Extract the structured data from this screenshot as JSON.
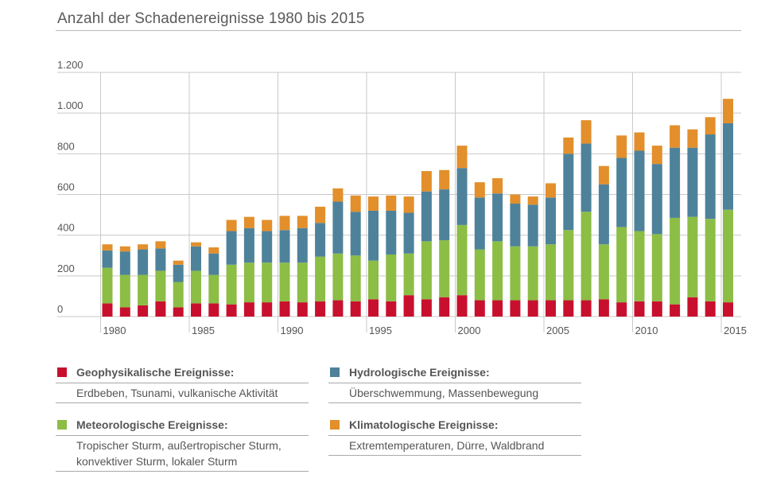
{
  "title": "Anzahl der Schadenereignisse 1980 bis 2015",
  "colors": {
    "geophysical": "#c8102e",
    "meteorological": "#8cbd45",
    "hydrological": "#4e829b",
    "climatological": "#e28f2c",
    "grid": "#c9c9c9",
    "axis_text": "#555555"
  },
  "legend": [
    {
      "key": "geophysical",
      "label": "Geophysikalische Ereignisse:",
      "desc": "Erdbeben, Tsunami, vulkanische Aktivität"
    },
    {
      "key": "hydrological",
      "label": "Hydrologische Ereignisse:",
      "desc": "Überschwemmung, Massenbewegung"
    },
    {
      "key": "meteorological",
      "label": "Meteorologische Ereignisse:",
      "desc": "Tropischer Sturm, außertropischer Sturm, konvektiver Sturm, lokaler Sturm"
    },
    {
      "key": "climatological",
      "label": "Klimatologische Ereignisse:",
      "desc": "Extremtemperaturen, Dürre, Waldbrand"
    }
  ],
  "chart_data": {
    "type": "bar",
    "stacked": true,
    "title": "Anzahl der Schadenereignisse 1980 bis 2015",
    "xlabel": "",
    "ylabel": "",
    "ylim": [
      0,
      1200
    ],
    "y_ticks": [
      0,
      200,
      400,
      600,
      800,
      1000,
      1200
    ],
    "y_tick_labels": [
      "0",
      "200",
      "400",
      "600",
      "800",
      "1.000",
      "1.200"
    ],
    "x_tick_labels": [
      "1980",
      "1985",
      "1990",
      "1995",
      "2000",
      "2005",
      "2010",
      "2015"
    ],
    "grid": true,
    "categories": [
      1980,
      1981,
      1982,
      1983,
      1984,
      1985,
      1986,
      1987,
      1988,
      1989,
      1990,
      1991,
      1992,
      1993,
      1994,
      1995,
      1996,
      1997,
      1998,
      1999,
      2000,
      2001,
      2002,
      2003,
      2004,
      2005,
      2006,
      2007,
      2008,
      2009,
      2010,
      2011,
      2012,
      2013,
      2014,
      2015
    ],
    "series": [
      {
        "key": "geophysical",
        "name": "Geophysikalische Ereignisse",
        "values": [
          65,
          45,
          55,
          75,
          45,
          65,
          65,
          60,
          70,
          70,
          75,
          70,
          75,
          80,
          75,
          85,
          75,
          105,
          85,
          95,
          105,
          80,
          80,
          80,
          80,
          80,
          80,
          80,
          85,
          70,
          75,
          75,
          60,
          95,
          75,
          70
        ]
      },
      {
        "key": "meteorological",
        "name": "Meteorologische Ereignisse",
        "values": [
          175,
          160,
          150,
          150,
          125,
          160,
          140,
          195,
          195,
          195,
          190,
          195,
          220,
          230,
          225,
          190,
          230,
          205,
          285,
          280,
          345,
          250,
          290,
          265,
          265,
          275,
          345,
          435,
          270,
          370,
          345,
          330,
          425,
          395,
          405,
          455
        ]
      },
      {
        "key": "hydrological",
        "name": "Hydrologische Ereignisse",
        "values": [
          85,
          115,
          125,
          110,
          85,
          120,
          105,
          165,
          170,
          155,
          160,
          170,
          165,
          255,
          215,
          245,
          215,
          200,
          245,
          250,
          280,
          255,
          235,
          210,
          205,
          230,
          375,
          335,
          295,
          340,
          395,
          345,
          345,
          340,
          415,
          425
        ]
      },
      {
        "key": "climatological",
        "name": "Klimatologische Ereignisse",
        "values": [
          30,
          25,
          25,
          35,
          20,
          20,
          30,
          55,
          55,
          55,
          70,
          60,
          80,
          65,
          80,
          70,
          75,
          80,
          100,
          95,
          110,
          75,
          75,
          45,
          40,
          70,
          80,
          115,
          90,
          110,
          90,
          90,
          110,
          90,
          85,
          120
        ]
      }
    ]
  }
}
